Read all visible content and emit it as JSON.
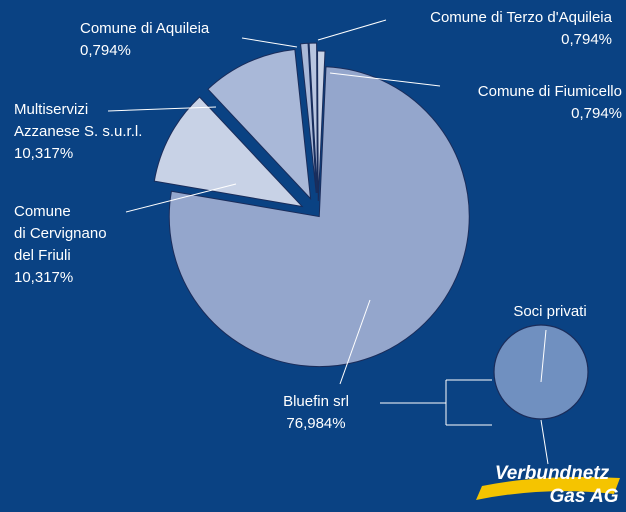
{
  "chart_data": {
    "type": "pie",
    "categories": [
      [
        "Comune di Aquileia"
      ],
      [
        "Comune di Terzo d'Aquileia"
      ],
      [
        "Comune di Fiumicello"
      ],
      [
        "Bluefin srl"
      ],
      [
        "Comune",
        "di Cervignano",
        "del Friuli"
      ],
      [
        "Multiservizi",
        "Azzanese S. s.u.r.l."
      ]
    ],
    "values": [
      0.794,
      0.794,
      0.794,
      76.984,
      10.317,
      10.317
    ],
    "value_labels": [
      "0,794%",
      "0,794%",
      "0,794%",
      "76,984%",
      "10,317%",
      "10,317%"
    ],
    "colors": [
      "#a9b8d8",
      "#b8c5e0",
      "#c8d2e6",
      "#94a6cc",
      "#c8d2e6",
      "#a9b8d8"
    ],
    "annotation": "Soci privati",
    "logo": [
      "Verbundnetz",
      "Gas AG"
    ]
  }
}
